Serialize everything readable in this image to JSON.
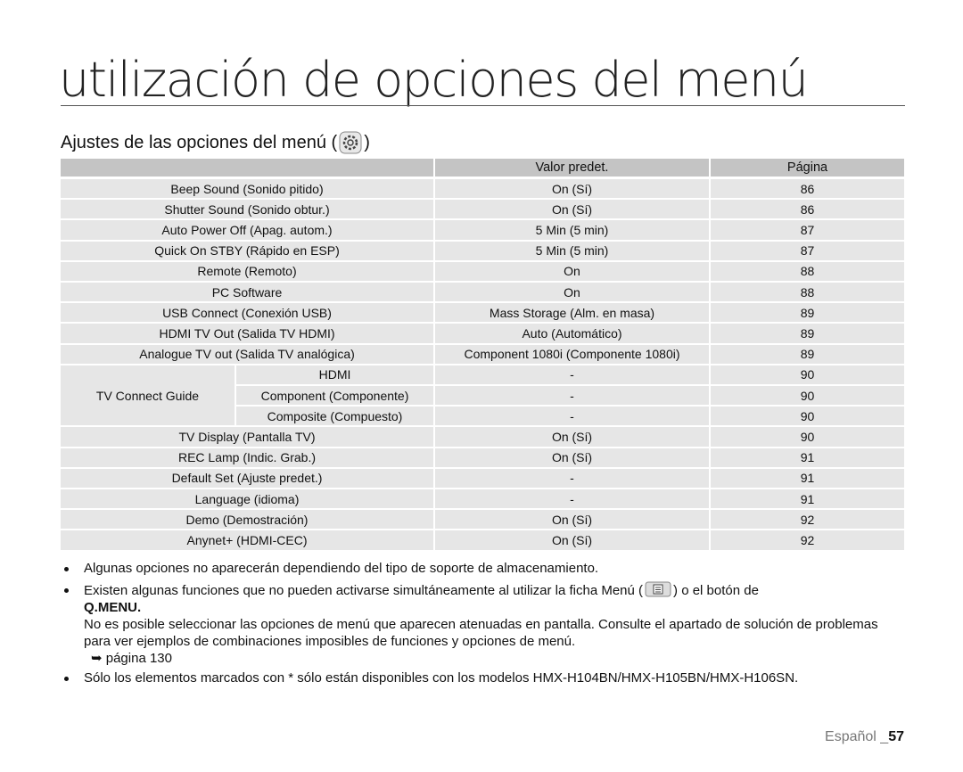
{
  "header": {
    "title": "utilización de opciones del menú",
    "subtitle": "Ajustes de las opciones del menú (",
    "subtitle_end": ")"
  },
  "table": {
    "columns": [
      "Valor predet.",
      "Página"
    ],
    "rows": [
      [
        "Beep Sound (Sonido pitido)",
        "On (Sí)",
        "86"
      ],
      [
        "Shutter Sound (Sonido obtur.)",
        "On (Sí)",
        "86"
      ],
      [
        "Auto Power Off (Apag. autom.)",
        "5 Min (5 min)",
        "87"
      ],
      [
        "Quick On STBY (Rápido en ESP)",
        "5 Min (5 min)",
        "87"
      ],
      [
        "Remote (Remoto)",
        "On",
        "88"
      ],
      [
        "PC Software",
        "On",
        "88"
      ],
      [
        "USB Connect (Conexión USB)",
        "Mass Storage (Alm. en masa)",
        "89"
      ],
      [
        "HDMI TV Out (Salida TV HDMI)",
        "Auto (Automático)",
        "89"
      ],
      [
        "Analogue TV out (Salida TV analógica)",
        "Component 1080i (Componente 1080i)",
        "89"
      ],
      {
        "label": "TV Connect Guide",
        "items": [
          [
            "HDMI",
            "-",
            "90"
          ],
          [
            "Component (Componente)",
            "-",
            "90"
          ],
          [
            "Composite (Compuesto)",
            "-",
            "90"
          ]
        ]
      },
      [
        "TV Display (Pantalla TV)",
        "On (Sí)",
        "90"
      ],
      [
        "REC Lamp (Indic. Grab.)",
        "On (Sí)",
        "91"
      ],
      [
        "Default Set (Ajuste predet.)",
        "-",
        "91"
      ],
      [
        "Language (idioma)",
        "-",
        "91"
      ],
      [
        "Demo (Demostración)",
        "On (Sí)",
        "92"
      ],
      [
        "Anynet+ (HDMI-CEC)",
        "On (Sí)",
        "92"
      ]
    ]
  },
  "notes": [
    {
      "text": "Algunas opciones no aparecerán dependiendo del tipo de soporte de almacenamiento."
    },
    {
      "text": "Existen algunas funciones que no pueden activarse simultáneamente al utilizar la ficha Menú (",
      "text_after": ") o el botón de",
      "bold": "Q.MENU.",
      "detail": "No es posible seleccionar las opciones de menú que aparecen atenuadas en pantalla. Consulte el apartado de solución de problemas para ver ejemplos de combinaciones imposibles de funciones y opciones de menú.",
      "ref": "➥ página 130"
    },
    {
      "text": "Sólo los elementos marcados con * sólo están disponibles con los modelos HMX-H104BN/HMX-H105BN/HMX-H106SN."
    }
  ],
  "footer": {
    "language": "Español _",
    "page": "57"
  }
}
